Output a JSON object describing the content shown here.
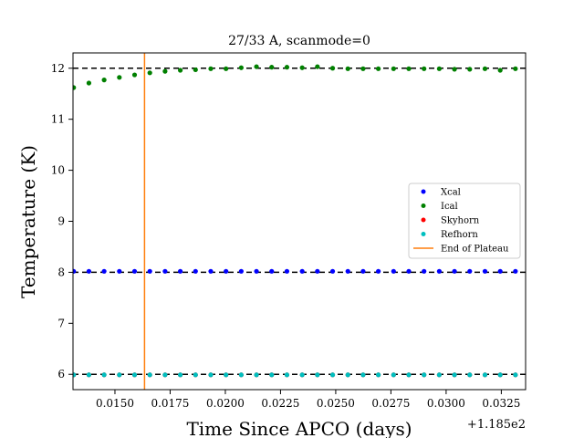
{
  "chart_data": {
    "type": "scatter",
    "title": "27/33 A, scanmode=0",
    "xlabel": "Time Since APCO (days)",
    "ylabel": "Temperature (K)",
    "x_offset_label": "+1.185e2",
    "xlim": [
      0.0131,
      0.0336
    ],
    "ylim": [
      5.7,
      12.3
    ],
    "x_ticks": [
      0.015,
      0.0175,
      0.02,
      0.0225,
      0.025,
      0.0275,
      0.03,
      0.0325
    ],
    "x_tick_labels": [
      "0.0150",
      "0.0175",
      "0.0200",
      "0.0225",
      "0.0250",
      "0.0275",
      "0.0300",
      "0.0325"
    ],
    "y_ticks": [
      6,
      7,
      8,
      9,
      10,
      11,
      12
    ],
    "y_tick_labels": [
      "6",
      "7",
      "8",
      "9",
      "10",
      "11",
      "12"
    ],
    "grid": false,
    "legend_position": "center-right",
    "x": [
      0.01313,
      0.01382,
      0.01451,
      0.0152,
      0.01589,
      0.01658,
      0.01727,
      0.01796,
      0.01865,
      0.01934,
      0.02003,
      0.02072,
      0.02141,
      0.0221,
      0.02279,
      0.02348,
      0.02417,
      0.02486,
      0.02555,
      0.02624,
      0.02693,
      0.02762,
      0.02831,
      0.029,
      0.02969,
      0.03038,
      0.03107,
      0.03176,
      0.03245,
      0.03314,
      0.03383
    ],
    "series": [
      {
        "name": "Xcal",
        "color": "#0000ff",
        "values": [
          8.02,
          8.02,
          8.02,
          8.02,
          8.02,
          8.02,
          8.02,
          8.02,
          8.02,
          8.02,
          8.02,
          8.02,
          8.02,
          8.02,
          8.02,
          8.02,
          8.02,
          8.02,
          8.02,
          8.02,
          8.02,
          8.02,
          8.02,
          8.02,
          8.02,
          8.02,
          8.02,
          8.02,
          8.02,
          8.02,
          8.02
        ]
      },
      {
        "name": "Ical",
        "color": "#008000",
        "values": [
          11.62,
          11.71,
          11.77,
          11.82,
          11.87,
          11.91,
          11.94,
          11.96,
          11.97,
          11.99,
          11.99,
          12.01,
          12.03,
          12.02,
          12.02,
          12.01,
          12.03,
          12.0,
          11.99,
          11.99,
          11.99,
          11.99,
          11.99,
          11.99,
          11.99,
          11.98,
          11.98,
          11.99,
          11.96,
          11.99,
          11.98
        ]
      },
      {
        "name": "Skyhorn",
        "color": "#ff0000",
        "values": [
          5.99,
          5.99,
          5.99,
          5.99,
          5.99,
          5.99,
          5.99,
          5.99,
          5.99,
          5.99,
          5.99,
          5.99,
          5.99,
          5.99,
          5.99,
          5.99,
          5.99,
          5.99,
          5.99,
          5.99,
          5.99,
          5.99,
          5.99,
          5.99,
          5.99,
          5.99,
          5.99,
          5.99,
          5.99,
          5.99,
          5.99
        ]
      },
      {
        "name": "Refhorn",
        "color": "#00bfbf",
        "values": [
          5.99,
          5.99,
          5.99,
          5.99,
          5.99,
          5.99,
          5.99,
          5.99,
          5.99,
          5.99,
          5.99,
          5.99,
          5.99,
          5.99,
          5.99,
          5.99,
          5.99,
          5.99,
          5.99,
          5.99,
          5.99,
          5.99,
          5.99,
          5.99,
          5.99,
          5.99,
          5.99,
          5.99,
          5.99,
          5.99,
          5.99
        ]
      }
    ],
    "reference_lines": [
      {
        "axis": "y",
        "value": 12,
        "color": "#000000",
        "style": "dashed"
      },
      {
        "axis": "y",
        "value": 8,
        "color": "#000000",
        "style": "dashed"
      },
      {
        "axis": "y",
        "value": 6,
        "color": "#000000",
        "style": "dashed"
      }
    ],
    "vertical_line": {
      "name": "End of Plateau",
      "x": 0.01634,
      "color": "#ff7f0e"
    }
  }
}
